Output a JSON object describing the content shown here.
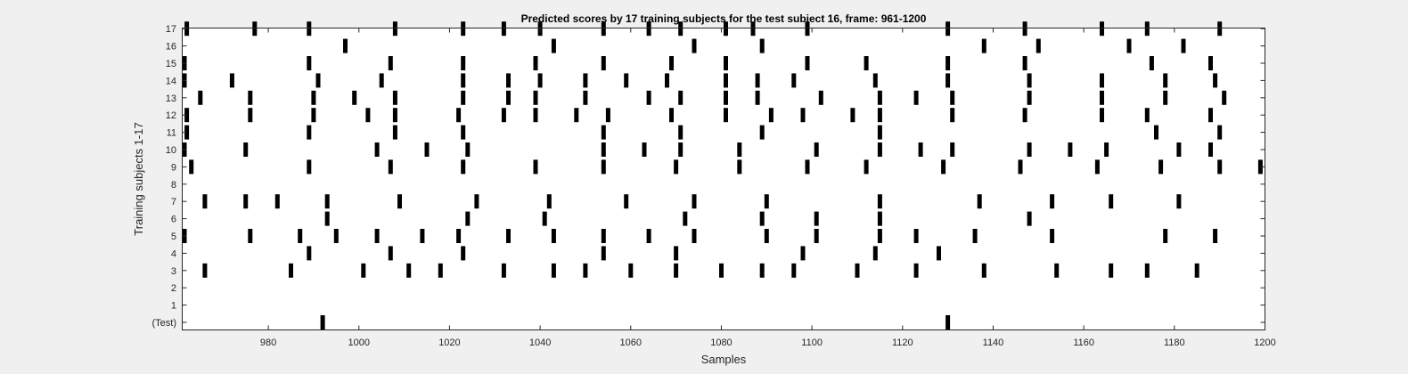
{
  "chart_data": {
    "type": "scatter",
    "title": "Predicted scores by 17 training subjects for the test subject 16, frame: 961-1200",
    "xlabel": "Samples",
    "ylabel": "Training subjects 1-17",
    "xlim": [
      961,
      1200
    ],
    "xticks": [
      "980",
      "1000",
      "1020",
      "1040",
      "1060",
      "1080",
      "1100",
      "1120",
      "1140",
      "1160",
      "1180",
      "1200"
    ],
    "row_labels": [
      "(Test)",
      "1",
      "2",
      "3",
      "4",
      "5",
      "6",
      "7",
      "8",
      "9",
      "10",
      "11",
      "12",
      "13",
      "14",
      "15",
      "16",
      "17"
    ],
    "grid": false,
    "legend": "none",
    "mark_color": "#000000",
    "rows": [
      {
        "label": "(Test)",
        "samples": [
          992,
          1130
        ]
      },
      {
        "label": "1",
        "samples": []
      },
      {
        "label": "2",
        "samples": []
      },
      {
        "label": "3",
        "samples": [
          966,
          985,
          1001,
          1011,
          1018,
          1032,
          1043,
          1050,
          1060,
          1070,
          1080,
          1089,
          1096,
          1110,
          1123,
          1138,
          1154,
          1166,
          1174,
          1185
        ]
      },
      {
        "label": "4",
        "samples": [
          989,
          1007,
          1023,
          1054,
          1070,
          1098,
          1114,
          1128
        ]
      },
      {
        "label": "5",
        "samples": [
          961,
          976,
          987,
          995,
          1004,
          1014,
          1022,
          1033,
          1043,
          1054,
          1064,
          1074,
          1090,
          1101,
          1115,
          1123,
          1136,
          1153,
          1178,
          1189
        ]
      },
      {
        "label": "6",
        "samples": [
          993,
          1024,
          1041,
          1072,
          1089,
          1101,
          1115,
          1148
        ]
      },
      {
        "label": "7",
        "samples": [
          966,
          975,
          982,
          993,
          1009,
          1026,
          1042,
          1059,
          1074,
          1090,
          1115,
          1137,
          1153,
          1166,
          1181
        ]
      },
      {
        "label": "8",
        "samples": []
      },
      {
        "label": "9",
        "samples": [
          963,
          989,
          1007,
          1023,
          1039,
          1054,
          1070,
          1084,
          1099,
          1112,
          1129,
          1146,
          1163,
          1177,
          1190,
          1199
        ]
      },
      {
        "label": "10",
        "samples": [
          961,
          975,
          1004,
          1015,
          1024,
          1054,
          1063,
          1071,
          1084,
          1101,
          1115,
          1124,
          1131,
          1148,
          1157,
          1165,
          1181,
          1188
        ]
      },
      {
        "label": "11",
        "samples": [
          962,
          989,
          1008,
          1023,
          1054,
          1071,
          1089,
          1115,
          1176,
          1190
        ]
      },
      {
        "label": "12",
        "samples": [
          962,
          976,
          990,
          1002,
          1008,
          1022,
          1032,
          1039,
          1048,
          1055,
          1069,
          1081,
          1091,
          1098,
          1109,
          1115,
          1131,
          1147,
          1164,
          1174,
          1188
        ]
      },
      {
        "label": "13",
        "samples": [
          965,
          976,
          990,
          999,
          1008,
          1023,
          1033,
          1039,
          1050,
          1064,
          1071,
          1081,
          1088,
          1102,
          1115,
          1123,
          1131,
          1148,
          1164,
          1178,
          1191
        ]
      },
      {
        "label": "14",
        "samples": [
          961,
          972,
          991,
          1005,
          1023,
          1033,
          1040,
          1050,
          1059,
          1068,
          1081,
          1088,
          1096,
          1114,
          1130,
          1148,
          1164,
          1178,
          1189
        ]
      },
      {
        "label": "15",
        "samples": [
          961,
          989,
          1007,
          1023,
          1039,
          1054,
          1069,
          1081,
          1099,
          1112,
          1130,
          1147,
          1175,
          1188
        ]
      },
      {
        "label": "16",
        "samples": [
          997,
          1043,
          1074,
          1089,
          1138,
          1150,
          1170,
          1182
        ]
      },
      {
        "label": "17",
        "samples": [
          962,
          977,
          989,
          1008,
          1023,
          1032,
          1040,
          1054,
          1064,
          1071,
          1081,
          1087,
          1099,
          1130,
          1147,
          1164,
          1174,
          1190
        ]
      }
    ]
  }
}
